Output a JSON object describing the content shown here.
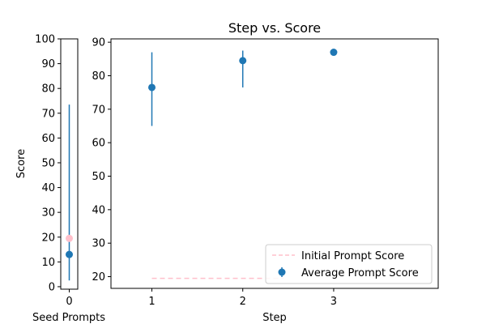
{
  "chart_data": [
    {
      "type": "scatter",
      "title": "",
      "xlabel": "Seed Prompts",
      "ylabel": "Score",
      "x_ticks": [
        0
      ],
      "ylim": [
        -1,
        100
      ],
      "y_ticks": [
        0,
        10,
        20,
        30,
        40,
        50,
        60,
        70,
        80,
        90,
        100
      ],
      "series": [
        {
          "name": "",
          "x": [
            0
          ],
          "y": [
            13.0
          ],
          "yerr_low": [
            10.5
          ],
          "yerr_high": [
            60.5
          ],
          "color": "#1f77b4",
          "marker": "circle",
          "errorbars": true
        },
        {
          "name": "",
          "x": [
            0
          ],
          "y": [
            19.5
          ],
          "color": "#ffc0cb",
          "marker": "circle",
          "errorbars": false
        }
      ]
    },
    {
      "type": "scatter",
      "title": "Step vs. Score",
      "xlabel": "Step",
      "ylabel": "",
      "x_ticks": [
        1,
        2,
        3
      ],
      "xlim": [
        0.55,
        4.15
      ],
      "ylim": [
        16.5,
        91
      ],
      "y_ticks": [
        20,
        30,
        40,
        50,
        60,
        70,
        80,
        90
      ],
      "grid": false,
      "legend_placement": "lower-right",
      "series": [
        {
          "name": "Average Prompt Score",
          "x": [
            1,
            2,
            3
          ],
          "y": [
            76.5,
            84.5,
            87.0
          ],
          "yerr_low": [
            11.5,
            8.0,
            1.0
          ],
          "yerr_high": [
            10.5,
            3.0,
            0.5
          ],
          "color": "#1f77b4",
          "marker": "circle",
          "errorbars": true
        },
        {
          "name": "Initial Prompt Score",
          "x": [
            1,
            2.45
          ],
          "y": [
            19.5,
            19.5
          ],
          "color": "#ffc0cb",
          "line_style": "dashed"
        }
      ]
    }
  ]
}
